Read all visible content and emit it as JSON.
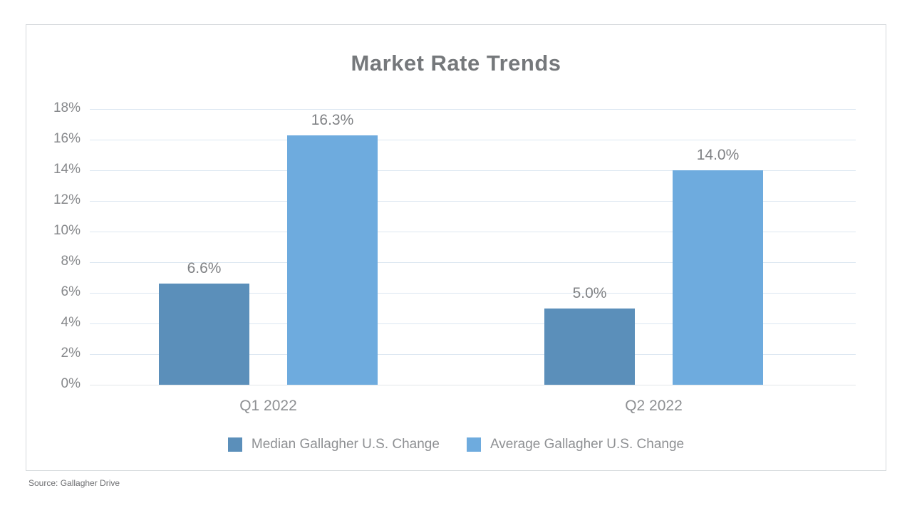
{
  "page": {
    "source_note": "Source: Gallagher Drive"
  },
  "chart_data": {
    "type": "bar",
    "title": "Market Rate Trends",
    "categories": [
      "Q1 2022",
      "Q2 2022"
    ],
    "series": [
      {
        "name": "Median Gallagher U.S. Change",
        "color": "#5b8fba",
        "values": [
          6.6,
          5.0
        ],
        "value_labels": [
          "6.6%",
          "5.0%"
        ]
      },
      {
        "name": "Average Gallagher U.S. Change",
        "color": "#6eabde",
        "values": [
          16.3,
          14.0
        ],
        "value_labels": [
          "16.3%",
          "14.0%"
        ]
      }
    ],
    "y_axis": {
      "min": 0,
      "max": 18,
      "step": 2,
      "tick_labels": [
        "0%",
        "2%",
        "4%",
        "6%",
        "8%",
        "10%",
        "12%",
        "14%",
        "16%",
        "18%"
      ]
    },
    "grid": true,
    "legend_position": "bottom",
    "colors": {
      "grid_line": "#dce7f1",
      "baseline": "#e2e6e9",
      "title_text": "#75787b",
      "axis_text": "#87898c",
      "value_label_text": "#808285",
      "category_text": "#8e9093",
      "legend_text": "#8e9093",
      "panel_border": "#d5d9dc"
    }
  }
}
